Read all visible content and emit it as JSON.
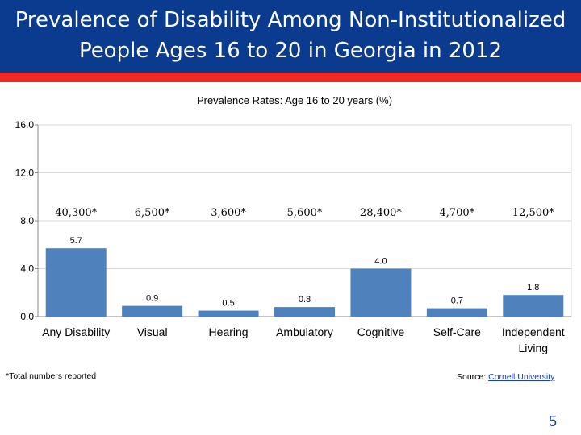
{
  "slide": {
    "title_line1": "Prevalence of Disability Among Non-Institutionalized",
    "title_line2": "People Ages 16 to 20 in Georgia in 2012",
    "footnote": "*Total numbers reported",
    "source_label": "Source: ",
    "source_link": "Cornell University",
    "page_number": "5"
  },
  "colors": {
    "title_bg": "#0b3b8f",
    "accent_red": "#ee2a24",
    "bar": "#4f81bd"
  },
  "chart_data": {
    "type": "bar",
    "title": "Prevalence Rates: Age 16 to 20 years (%)",
    "categories": [
      "Any Disability",
      "Visual",
      "Hearing",
      "Ambulatory",
      "Cognitive",
      "Self-Care",
      "Independent Living"
    ],
    "values": [
      5.7,
      0.9,
      0.5,
      0.8,
      4.0,
      0.7,
      1.8
    ],
    "value_labels": [
      "5.7",
      "0.9",
      "0.5",
      "0.8",
      "4.0",
      "0.7",
      "1.8"
    ],
    "totals": [
      "40,300*",
      "6,500*",
      "3,600*",
      "5,600*",
      "28,400*",
      "4,700*",
      "12,500*"
    ],
    "yticks": [
      "0.0",
      "4.0",
      "8.0",
      "12.0",
      "16.0"
    ],
    "ylim": [
      0,
      16
    ],
    "grid": true,
    "xlabel": "",
    "ylabel": ""
  }
}
